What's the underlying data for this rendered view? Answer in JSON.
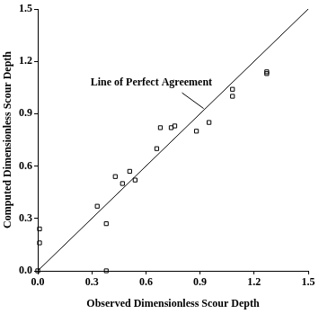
{
  "chart_data": {
    "type": "scatter",
    "x_label": "Observed Dimensionless Scour Depth",
    "y_label": "Computed Dimensionless Scour Depth",
    "x": [
      0.0,
      0.01,
      0.01,
      0.38,
      0.33,
      0.38,
      0.43,
      0.47,
      0.51,
      0.54,
      0.66,
      0.68,
      0.74,
      0.76,
      0.88,
      0.95,
      1.08,
      1.08,
      1.27,
      1.27
    ],
    "values": [
      0.0,
      0.24,
      0.16,
      0.0,
      0.37,
      0.27,
      0.54,
      0.5,
      0.57,
      0.52,
      0.7,
      0.82,
      0.82,
      0.83,
      0.8,
      0.85,
      1.0,
      1.04,
      1.13,
      1.14
    ],
    "color": "#000000",
    "marker": "square",
    "reference_line": {
      "label": "Line of Perfect Agreement",
      "x": [
        0,
        1.5
      ],
      "y": [
        0,
        1.5
      ]
    },
    "xlim": [
      0,
      1.5
    ],
    "xticks": [
      {
        "value": 0,
        "label": "0.0"
      },
      {
        "value": 0.3,
        "label": "0.3"
      },
      {
        "value": 0.6,
        "label": "0.6"
      },
      {
        "value": 0.9,
        "label": "0.9"
      },
      {
        "value": 1.2,
        "label": "1.2"
      },
      {
        "value": 1.5,
        "label": "1.5"
      }
    ],
    "ylim": [
      0,
      1.5
    ],
    "yticks": [
      {
        "value": 0,
        "label": "0.0"
      },
      {
        "value": 0.3,
        "label": "0.3"
      },
      {
        "value": 0.6,
        "label": "0.6"
      },
      {
        "value": 0.9,
        "label": "0.9"
      },
      {
        "value": 1.2,
        "label": "1.2"
      },
      {
        "value": 1.5,
        "label": "1.5"
      }
    ],
    "grid": false
  }
}
